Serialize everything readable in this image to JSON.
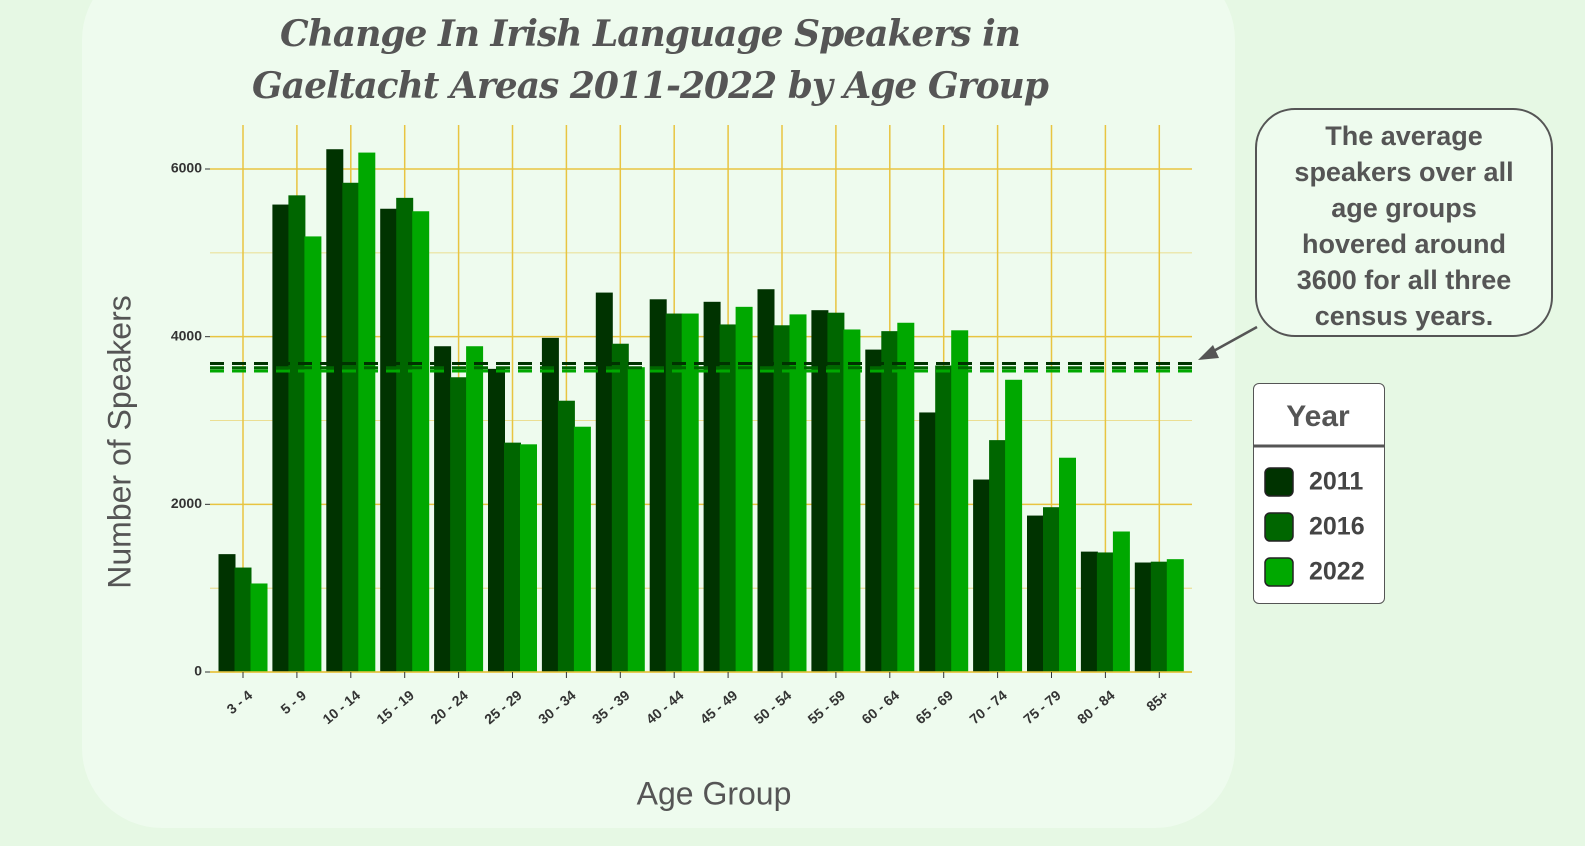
{
  "chart_data": {
    "type": "bar",
    "title": "Change In Irish Language Speakers in Gaeltacht Areas 2011-2022 by Age Group",
    "x_label": "Age Group",
    "y_label": "Number of Speakers",
    "categories": [
      "3 - 4",
      "5 - 9",
      "10 - 14",
      "15 - 19",
      "20 - 24",
      "25 - 29",
      "30 - 34",
      "35 - 39",
      "40 - 44",
      "45 - 49",
      "50 - 54",
      "55 - 59",
      "60 - 64",
      "65 - 69",
      "70 - 74",
      "75 - 79",
      "80 - 84",
      "85+"
    ],
    "series": [
      {
        "name": "2011",
        "color": "#003300",
        "values": [
          1400,
          5570,
          6230,
          5520,
          3880,
          3610,
          3980,
          4520,
          4440,
          4410,
          4560,
          4310,
          3840,
          3090,
          2290,
          1860,
          1430,
          1300
        ]
      },
      {
        "name": "2016",
        "color": "#006600",
        "values": [
          1240,
          5680,
          5830,
          5650,
          3510,
          2730,
          3230,
          3910,
          4270,
          4140,
          4130,
          4280,
          4060,
          3650,
          2760,
          1960,
          1420,
          1310
        ]
      },
      {
        "name": "2022",
        "color": "#00a800",
        "values": [
          1050,
          5190,
          6190,
          5490,
          3880,
          2710,
          2920,
          3630,
          4270,
          4350,
          4260,
          4080,
          4160,
          4070,
          3480,
          2550,
          1670,
          1340
        ]
      }
    ],
    "reference_lines": [
      3680,
      3630,
      3590
    ],
    "ylim": [
      0,
      6525
    ],
    "yticks": [
      0,
      2000,
      4000,
      6000
    ],
    "grid": true,
    "legend_title": "Year",
    "legend_position": "right",
    "annotation": "The average speakers over all age groups hovered around 3600 for all three census years."
  }
}
